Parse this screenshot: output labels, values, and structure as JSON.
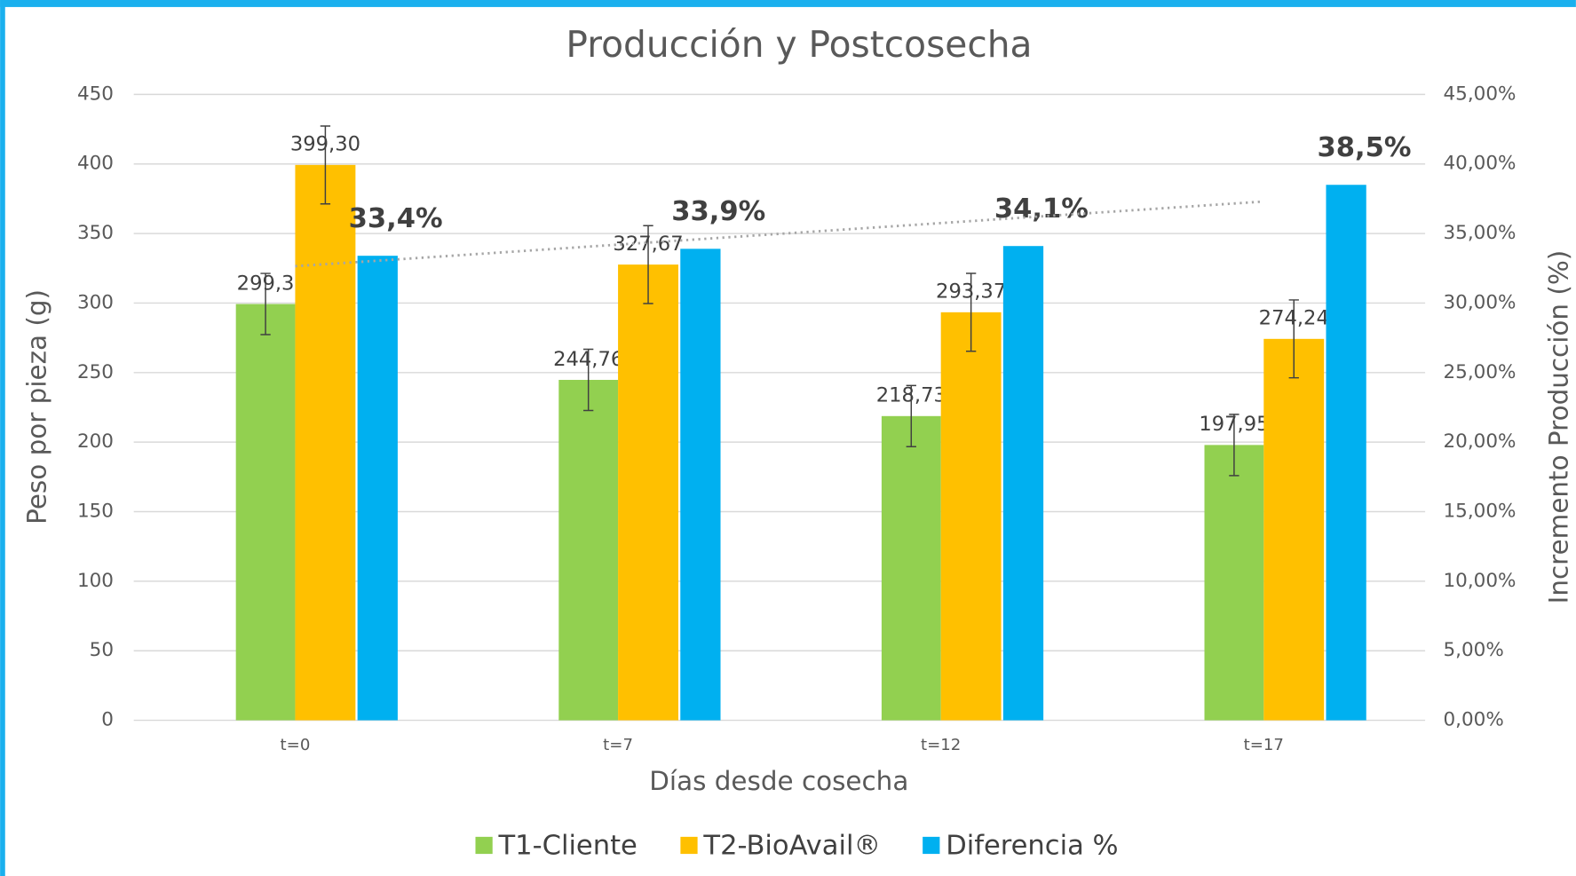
{
  "chart_data": {
    "type": "bar",
    "title": "Producción y Postcosecha",
    "x_label": "Días desde cosecha",
    "y_label": "Peso por pieza (g)",
    "y2_label": "Incremento Producción (%)",
    "categories": [
      "t=0",
      "t=7",
      "t=12",
      "t=17"
    ],
    "series": [
      {
        "name": "T1-Cliente",
        "color": "#92d050",
        "values": [
          299.3,
          244.76,
          218.73,
          197.95
        ],
        "value_labels": [
          "299,3",
          "244,76",
          "218,73",
          "197,95"
        ],
        "errors": [
          22,
          22,
          22,
          22
        ]
      },
      {
        "name": "T2-BioAvail®",
        "color": "#ffc000",
        "values": [
          399.3,
          327.67,
          293.37,
          274.24
        ],
        "value_labels": [
          "399,30",
          "327,67",
          "293,37",
          "274,24"
        ],
        "errors": [
          28,
          28,
          28,
          28
        ]
      },
      {
        "name": "Diferencia %",
        "color": "#00b0f0",
        "axis": "y2",
        "values": [
          33.4,
          33.9,
          34.1,
          38.5
        ],
        "value_labels": [
          "33,4%",
          "33,9%",
          "34,1%",
          "38,5%"
        ],
        "trendline": "linear"
      }
    ],
    "ylim": [
      0,
      450
    ],
    "yticks": [
      0,
      50,
      100,
      150,
      200,
      250,
      300,
      350,
      400,
      450
    ],
    "y2lim": [
      0,
      45
    ],
    "y2ticks": [
      {
        "value": 0,
        "label": "0,00%"
      },
      {
        "value": 5,
        "label": "5,00%"
      },
      {
        "value": 10,
        "label": "10,00%"
      },
      {
        "value": 15,
        "label": "15,00%"
      },
      {
        "value": 20,
        "label": "20,00%"
      },
      {
        "value": 25,
        "label": "25,00%"
      },
      {
        "value": 30,
        "label": "30,00%"
      },
      {
        "value": 35,
        "label": "35,00%"
      },
      {
        "value": 40,
        "label": "40,00%"
      },
      {
        "value": 45,
        "label": "45,00%"
      }
    ],
    "grid": true,
    "legend": "bottom"
  }
}
